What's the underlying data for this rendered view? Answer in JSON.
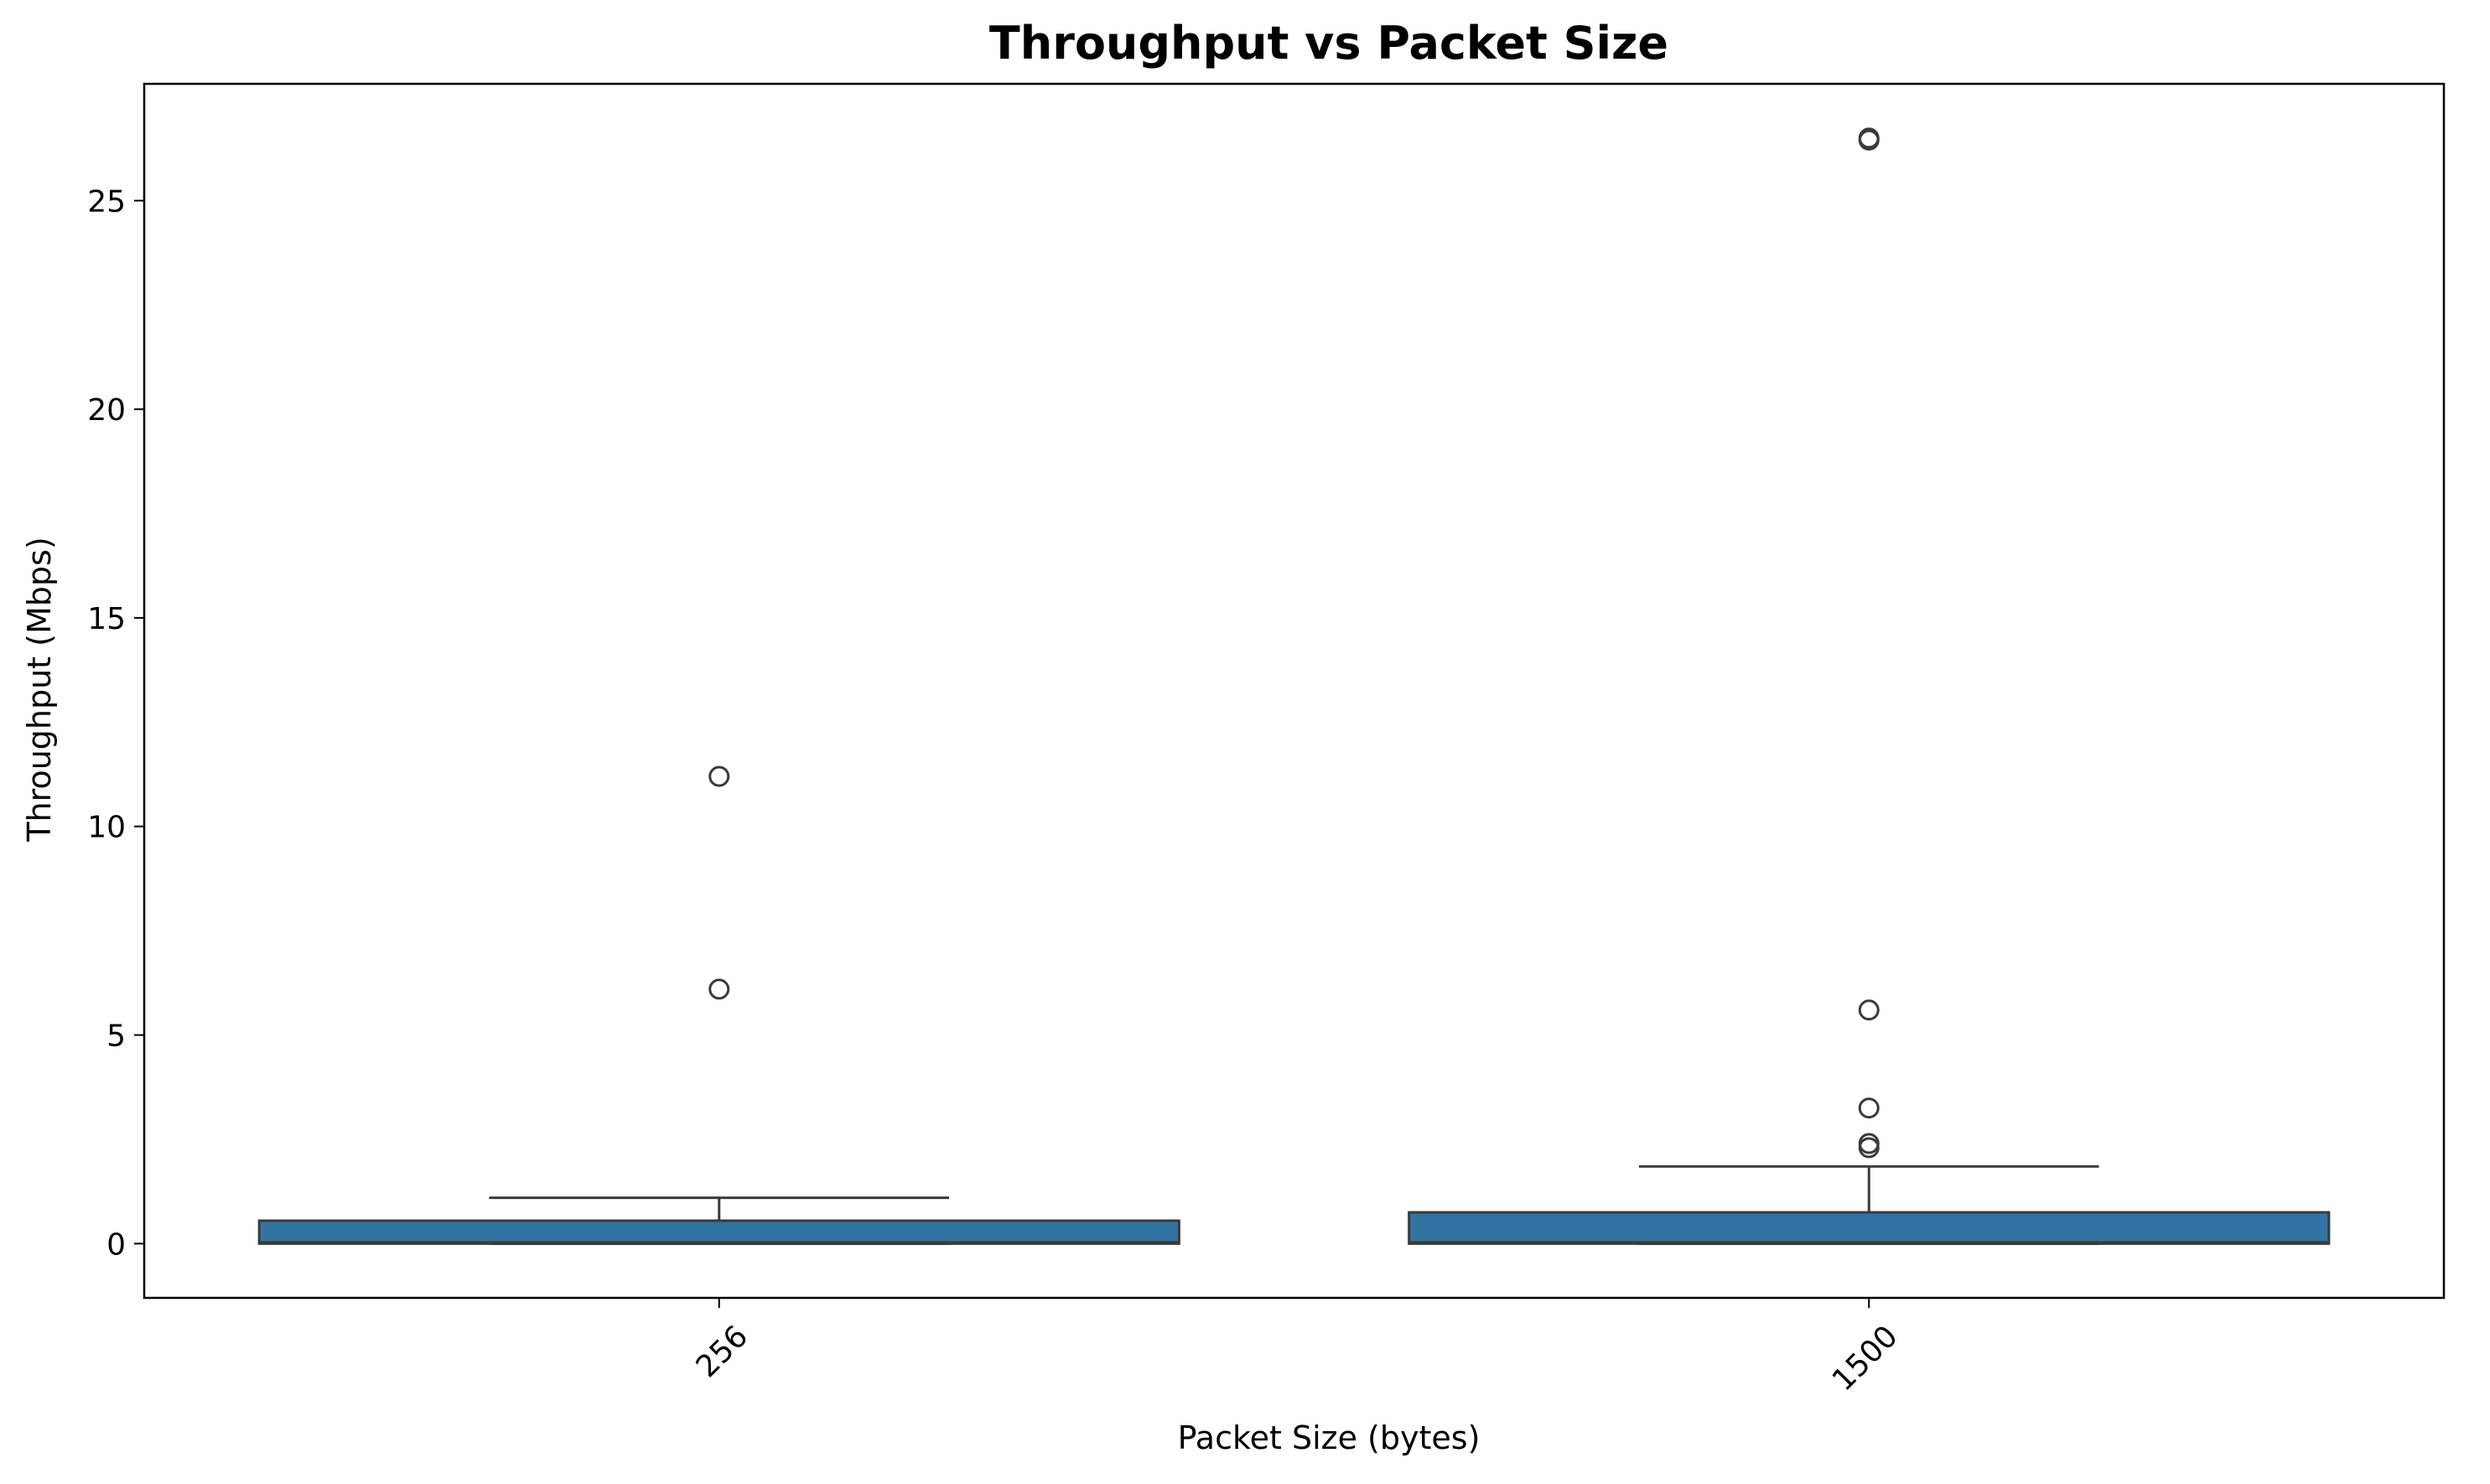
{
  "chart_data": {
    "type": "box",
    "title": "Throughput vs Packet Size",
    "xlabel": "Packet Size (bytes)",
    "ylabel": "Throughput (Mbps)",
    "categories": [
      "256",
      "1500"
    ],
    "ylim": [
      -1.3,
      27.8
    ],
    "yticks": [
      0,
      5,
      10,
      15,
      20,
      25
    ],
    "grid": false,
    "box_color": "#3274a1",
    "edge_color": "#3a3a3a",
    "boxes": [
      {
        "category": "256",
        "whisker_low": 0.0,
        "q1": 0.0,
        "median": 0.02,
        "q3": 0.55,
        "whisker_high": 1.1,
        "outliers": [
          6.1,
          11.2
        ]
      },
      {
        "category": "1500",
        "whisker_low": 0.0,
        "q1": 0.0,
        "median": 0.02,
        "q3": 0.75,
        "whisker_high": 1.85,
        "outliers": [
          2.3,
          2.4,
          3.25,
          5.6,
          26.45,
          26.5
        ]
      }
    ]
  }
}
